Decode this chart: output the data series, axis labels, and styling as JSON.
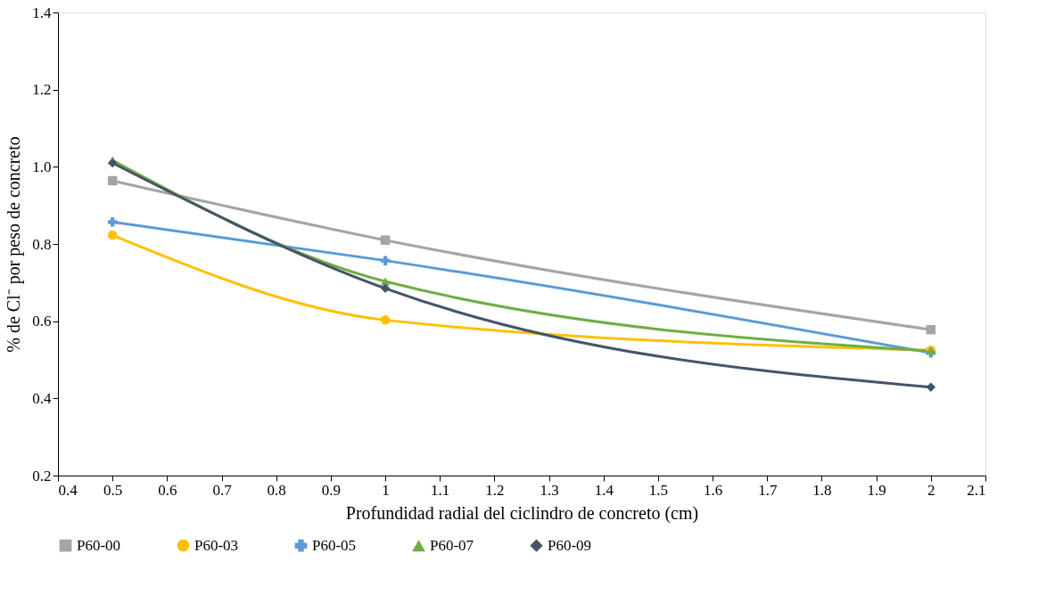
{
  "chart_data": {
    "type": "line",
    "xlabel": "Profundidad radial  del ciclindro de concreto (cm)",
    "ylabel": "% de Cl⁻ por peso de concreto",
    "x": [
      0.5,
      1,
      2
    ],
    "series": [
      {
        "name": "P60-00",
        "color": "#a5a5a5",
        "marker": "square",
        "values": [
          0.964,
          0.81,
          0.578
        ]
      },
      {
        "name": "P60-03",
        "color": "#ffc000",
        "marker": "circle",
        "values": [
          0.823,
          0.603,
          0.525
        ]
      },
      {
        "name": "P60-05",
        "color": "#5b9bd5",
        "marker": "cross",
        "values": [
          0.857,
          0.757,
          0.518
        ]
      },
      {
        "name": "P60-07",
        "color": "#70ad47",
        "marker": "triangle",
        "values": [
          1.017,
          0.703,
          0.523
        ]
      },
      {
        "name": "P60-09",
        "color": "#44546a",
        "marker": "diamond",
        "values": [
          1.01,
          0.685,
          0.429
        ]
      }
    ],
    "xlim": [
      0.4,
      2.1
    ],
    "xticks": [
      0.4,
      0.5,
      0.6,
      0.7,
      0.8,
      0.9,
      1,
      1.1,
      1.2,
      1.3,
      1.4,
      1.5,
      1.6,
      1.7,
      1.8,
      1.9,
      2,
      2.1
    ],
    "ylim": [
      0.2,
      1.4
    ],
    "yticks": [
      {
        "value": 0.2,
        "label": "0.2"
      },
      {
        "value": 0.4,
        "label": "0.4"
      },
      {
        "value": 0.6,
        "label": "0.6"
      },
      {
        "value": 0.8,
        "label": "0.8"
      },
      {
        "value": 1,
        "label": "1.0"
      },
      {
        "value": 1.2,
        "label": "1.2"
      },
      {
        "value": 1.4,
        "label": "1.4"
      }
    ],
    "grid": false,
    "legend": "bottom",
    "line_style": "solid"
  }
}
